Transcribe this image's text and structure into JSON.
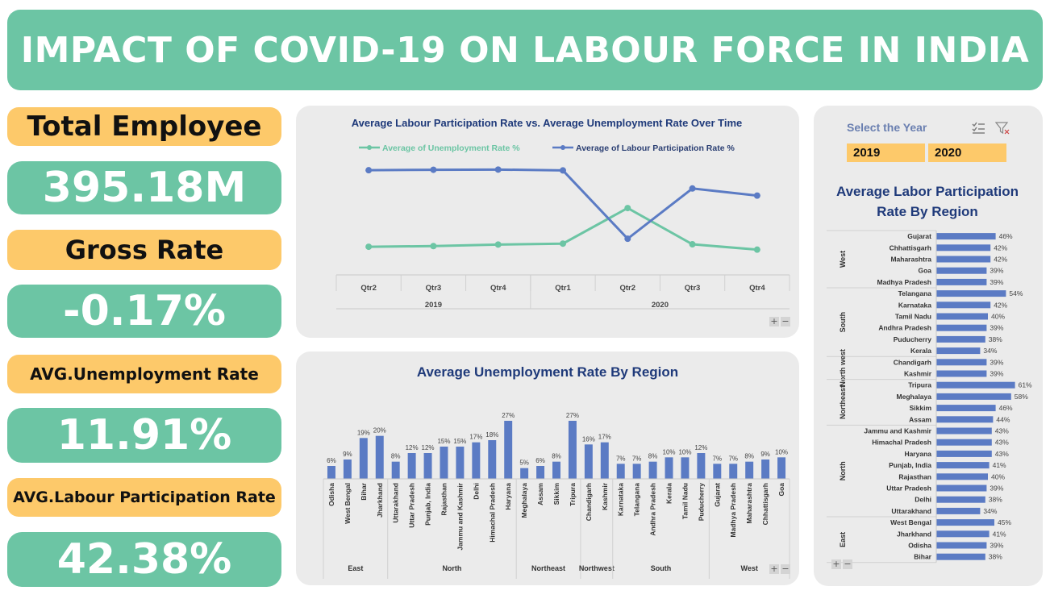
{
  "title": "IMPACT OF COVID-19 ON LABOUR FORCE IN INDIA",
  "kpis": {
    "total_employee_label": "Total Employee",
    "total_employee_value": "395.18M",
    "gross_rate_label": "Gross Rate",
    "gross_rate_value": "-0.17%",
    "avg_unemployment_label": "AVG.Unemployment Rate",
    "avg_unemployment_value": "11.91%",
    "avg_lpr_label": "AVG.Labour Participation Rate",
    "avg_lpr_value": "42.38%"
  },
  "slicer": {
    "title": "Select the Year",
    "options": [
      "2019",
      "2020"
    ]
  },
  "colors": {
    "green": "#6cc5a4",
    "orange": "#fdc96a",
    "bar": "#5b7bc4",
    "line_lpr": "#5b7bc4",
    "line_unemp": "#6cc5a4",
    "title_blue": "#1f3a7a"
  },
  "chart_data": [
    {
      "type": "line",
      "title": "Average Labour Participation Rate vs. Average Unemployment Rate Over Time",
      "categories": [
        "Qtr2",
        "Qtr3",
        "Qtr4",
        "Qtr1",
        "Qtr2",
        "Qtr3",
        "Qtr4"
      ],
      "groups": [
        {
          "label": "2019",
          "span": 3
        },
        {
          "label": "2020",
          "span": 4
        }
      ],
      "ylim": [
        0,
        50
      ],
      "series": [
        {
          "name": "Average of Unemployment Rate %",
          "color": "#6cc5a4",
          "values": [
            8.3,
            8.6,
            9.3,
            9.7,
            25.7,
            9.4,
            7.0
          ]
        },
        {
          "name": "Average of Labour Participation Rate %",
          "color": "#5b7bc4",
          "values": [
            42.7,
            42.9,
            43.0,
            42.6,
            11.9,
            34.5,
            31.3
          ]
        }
      ]
    },
    {
      "type": "bar",
      "title": "Average Unemployment Rate By Region",
      "categories": [
        "Odisha",
        "West Bengal",
        "Bihar",
        "Jharkhand",
        "Uttarakhand",
        "Uttar Pradesh",
        "Punjab, India",
        "Rajasthan",
        "Jammu and Kashmir",
        "Delhi",
        "Himachal Pradesh",
        "Haryana",
        "Meghalaya",
        "Assam",
        "Sikkim",
        "Tripura",
        "Chandigarh",
        "Kashmir",
        "Karnataka",
        "Telangana",
        "Andhra Pradesh",
        "Kerala",
        "Tamil Nadu",
        "Puducherry",
        "Gujarat",
        "Madhya Pradesh",
        "Maharashtra",
        "Chhattisgarh",
        "Goa"
      ],
      "values": [
        6,
        9,
        19,
        20,
        8,
        12,
        12,
        15,
        15,
        17,
        18,
        27,
        5,
        6,
        8,
        27,
        16,
        17,
        7,
        7,
        8,
        10,
        10,
        12,
        7,
        7,
        8,
        9,
        10
      ],
      "labels": [
        "6%",
        "9%",
        "19%",
        "20%",
        "8%",
        "12%",
        "12%",
        "15%",
        "15%",
        "17%",
        "18%",
        "27%",
        "5%",
        "6%",
        "8%",
        "27%",
        "16%",
        "17%",
        "7%",
        "7%",
        "8%",
        "10%",
        "10%",
        "12%",
        "7%",
        "7%",
        "8%",
        "9%",
        "10%"
      ],
      "groups": [
        {
          "label": "East",
          "span": 4
        },
        {
          "label": "North",
          "span": 8
        },
        {
          "label": "Northeast",
          "span": 4
        },
        {
          "label": "Northwest",
          "span": 2
        },
        {
          "label": "South",
          "span": 6
        },
        {
          "label": "West",
          "span": 5
        }
      ],
      "ylim": [
        0,
        30
      ]
    },
    {
      "type": "bar",
      "orientation": "horizontal",
      "title_lines": [
        "Average Labor Participation",
        "Rate  By Region"
      ],
      "categories": [
        "Gujarat",
        "Chhattisgarh",
        "Maharashtra",
        "Goa",
        "Madhya Pradesh",
        "Telangana",
        "Karnataka",
        "Tamil Nadu",
        "Andhra Pradesh",
        "Puducherry",
        "Kerala",
        "Chandigarh",
        "Kashmir",
        "Tripura",
        "Meghalaya",
        "Sikkim",
        "Assam",
        "Jammu and Kashmir",
        "Himachal Pradesh",
        "Haryana",
        "Punjab, India",
        "Rajasthan",
        "Uttar Pradesh",
        "Delhi",
        "Uttarakhand",
        "West Bengal",
        "Jharkhand",
        "Odisha",
        "Bihar"
      ],
      "values": [
        46,
        42,
        42,
        39,
        39,
        54,
        42,
        40,
        39,
        38,
        34,
        39,
        39,
        61,
        58,
        46,
        44,
        43,
        43,
        43,
        41,
        40,
        39,
        38,
        34,
        45,
        41,
        39,
        38
      ],
      "labels": [
        "46%",
        "42%",
        "42%",
        "39%",
        "39%",
        "54%",
        "42%",
        "40%",
        "39%",
        "38%",
        "34%",
        "39%",
        "39%",
        "61%",
        "58%",
        "46%",
        "44%",
        "43%",
        "43%",
        "43%",
        "41%",
        "40%",
        "39%",
        "38%",
        "34%",
        "45%",
        "41%",
        "39%",
        "38%"
      ],
      "groups": [
        {
          "label": "West",
          "span": 5
        },
        {
          "label": "South",
          "span": 6
        },
        {
          "label": "North west",
          "span": 2
        },
        {
          "label": "Northeast",
          "span": 4
        },
        {
          "label": "North",
          "span": 8
        },
        {
          "label": "East",
          "span": 4
        }
      ],
      "xlim": [
        0,
        70
      ]
    }
  ]
}
